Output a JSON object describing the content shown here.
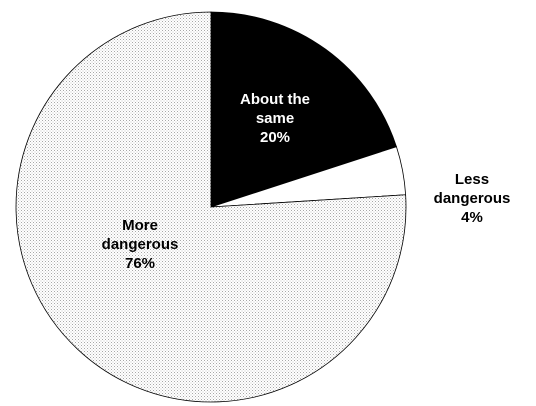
{
  "chart_data": {
    "type": "pie",
    "title": "",
    "start_angle_deg": 0,
    "direction": "clockwise",
    "slices": [
      {
        "label_lines": [
          "About the",
          "same"
        ],
        "value": 20,
        "value_label": "20%",
        "fill": "#000000",
        "text_color": "#ffffff",
        "pattern": "solid"
      },
      {
        "label_lines": [
          "Less",
          "dangerous"
        ],
        "value": 4,
        "value_label": "4%",
        "fill": "#ffffff",
        "text_color": "#000000",
        "pattern": "solid"
      },
      {
        "label_lines": [
          "More",
          "dangerous"
        ],
        "value": 76,
        "value_label": "76%",
        "fill": "#e6e6e6",
        "text_color": "#000000",
        "pattern": "dotted"
      }
    ]
  }
}
